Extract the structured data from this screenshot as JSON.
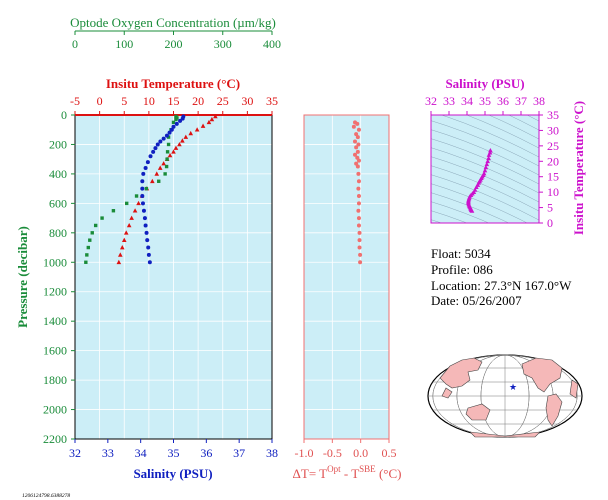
{
  "colors": {
    "oxygen": "#1a8c3a",
    "temperature": "#dd1111",
    "salinity": "#1020c0",
    "delta": "#f07070",
    "delta_axis": "#e05050",
    "ts_axis": "#cc11cc",
    "panel_bg": "#cceef7",
    "axis_black": "#000000"
  },
  "oxygen_axis": {
    "title": "Optode Oxygen Concentration (µm/kg)",
    "ticks": [
      "0",
      "100",
      "200",
      "300",
      "400"
    ]
  },
  "temperature_axis": {
    "title": "Insitu Temperature (°C)",
    "ticks": [
      "-5",
      "0",
      "5",
      "10",
      "15",
      "20",
      "25",
      "30",
      "35"
    ]
  },
  "salinity_axis": {
    "title": "Salinity (PSU)",
    "ticks": [
      "32",
      "33",
      "34",
      "35",
      "36",
      "37",
      "38"
    ]
  },
  "pressure_axis": {
    "title": "Pressure (decibar)",
    "ticks": [
      "0",
      "200",
      "400",
      "600",
      "800",
      "1000",
      "1200",
      "1400",
      "1600",
      "1800",
      "2000",
      "2200"
    ]
  },
  "delta_axis": {
    "title_prefix": "ΔT= T",
    "sup1": "Opt",
    "mid": " - T",
    "sup2": "SBE",
    "suffix": " (°C)",
    "ticks": [
      "-1.0",
      "-0.5",
      "0.0",
      "0.5"
    ]
  },
  "ts_axis": {
    "x_title": "Salinity (PSU)",
    "x_ticks": [
      "32",
      "33",
      "34",
      "35",
      "36",
      "37",
      "38"
    ],
    "y_title": "Insitu Temperature (°C)",
    "y_ticks": [
      "0",
      "5",
      "10",
      "15",
      "20",
      "25",
      "30",
      "35"
    ]
  },
  "info": {
    "float": "Float:  5034",
    "profile": "Profile:  086",
    "location": "Location:  27.3°N  167.0°W",
    "date": "Date:  05/26/2007"
  },
  "footnote": "1206124798.6388278",
  "chart_data": [
    {
      "type": "scatter",
      "subtitle": "profile",
      "ylabel": "Pressure (decibar)",
      "ylim": [
        2200,
        0
      ],
      "series": [
        {
          "key": "temperature",
          "xlim": [
            -5,
            35
          ],
          "marker": "triangle",
          "points": [
            [
              23.5,
              10
            ],
            [
              22.8,
              30
            ],
            [
              22.2,
              50
            ],
            [
              21,
              75
            ],
            [
              19.8,
              100
            ],
            [
              18.5,
              125
            ],
            [
              17.5,
              150
            ],
            [
              16.8,
              175
            ],
            [
              16.2,
              200
            ],
            [
              15.5,
              225
            ],
            [
              15,
              250
            ],
            [
              14.3,
              275
            ],
            [
              13.7,
              300
            ],
            [
              13,
              330
            ],
            [
              12.3,
              360
            ],
            [
              11.6,
              400
            ],
            [
              10.7,
              450
            ],
            [
              9.6,
              500
            ],
            [
              8.6,
              550
            ],
            [
              7.9,
              600
            ],
            [
              7.2,
              650
            ],
            [
              6.5,
              700
            ],
            [
              6,
              750
            ],
            [
              5.4,
              800
            ],
            [
              5,
              850
            ],
            [
              4.6,
              900
            ],
            [
              4.2,
              950
            ],
            [
              3.9,
              1000
            ]
          ]
        },
        {
          "key": "salinity",
          "xlim": [
            32,
            38
          ],
          "marker": "circle",
          "points": [
            [
              35.3,
              10
            ],
            [
              35.28,
              25
            ],
            [
              35.2,
              40
            ],
            [
              35.1,
              60
            ],
            [
              35,
              80
            ],
            [
              34.95,
              100
            ],
            [
              34.88,
              120
            ],
            [
              34.8,
              140
            ],
            [
              34.7,
              160
            ],
            [
              34.6,
              180
            ],
            [
              34.52,
              200
            ],
            [
              34.45,
              225
            ],
            [
              34.38,
              250
            ],
            [
              34.3,
              280
            ],
            [
              34.22,
              320
            ],
            [
              34.15,
              360
            ],
            [
              34.08,
              400
            ],
            [
              34.05,
              450
            ],
            [
              34.05,
              500
            ],
            [
              34.05,
              550
            ],
            [
              34.07,
              600
            ],
            [
              34.1,
              650
            ],
            [
              34.13,
              700
            ],
            [
              34.15,
              750
            ],
            [
              34.18,
              800
            ],
            [
              34.2,
              850
            ],
            [
              34.23,
              900
            ],
            [
              34.25,
              950
            ],
            [
              34.28,
              1000
            ]
          ]
        },
        {
          "key": "oxygen",
          "xlim": [
            0,
            400
          ],
          "marker": "square",
          "points": [
            [
              205,
              10
            ],
            [
              207,
              20
            ],
            [
              205,
              30
            ],
            [
              200,
              50
            ],
            [
              195,
              100
            ],
            [
              190,
              150
            ],
            [
              190,
              200
            ],
            [
              188,
              250
            ],
            [
              187,
              300
            ],
            [
              186,
              350
            ],
            [
              183,
              400
            ],
            [
              170,
              450
            ],
            [
              145,
              500
            ],
            [
              125,
              550
            ],
            [
              105,
              600
            ],
            [
              78,
              650
            ],
            [
              55,
              700
            ],
            [
              42,
              750
            ],
            [
              35,
              800
            ],
            [
              30,
              850
            ],
            [
              27,
              900
            ],
            [
              24,
              950
            ],
            [
              22,
              1000
            ]
          ]
        }
      ]
    },
    {
      "type": "scatter",
      "subtitle": "delta",
      "xlim": [
        -1.0,
        0.5
      ],
      "ylim": [
        2200,
        0
      ],
      "marker": "circle",
      "points": [
        [
          -0.1,
          50
        ],
        [
          -0.06,
          60
        ],
        [
          -0.12,
          80
        ],
        [
          -0.03,
          100
        ],
        [
          -0.08,
          130
        ],
        [
          -0.05,
          150
        ],
        [
          -0.1,
          180
        ],
        [
          -0.04,
          200
        ],
        [
          -0.08,
          220
        ],
        [
          -0.05,
          250
        ],
        [
          -0.1,
          270
        ],
        [
          -0.06,
          290
        ],
        [
          -0.03,
          310
        ],
        [
          -0.08,
          330
        ],
        [
          -0.05,
          350
        ],
        [
          -0.04,
          400
        ],
        [
          -0.03,
          450
        ],
        [
          -0.04,
          500
        ],
        [
          -0.03,
          550
        ],
        [
          -0.03,
          600
        ],
        [
          -0.04,
          650
        ],
        [
          -0.03,
          700
        ],
        [
          -0.03,
          750
        ],
        [
          -0.02,
          800
        ],
        [
          -0.02,
          850
        ],
        [
          -0.02,
          900
        ],
        [
          -0.01,
          950
        ],
        [
          -0.01,
          1000
        ]
      ]
    },
    {
      "type": "scatter",
      "subtitle": "TS diagram",
      "xlabel": "Salinity (PSU)",
      "ylabel": "Insitu Temperature (°C)",
      "xlim": [
        32,
        38
      ],
      "ylim": [
        0,
        35
      ],
      "marker": "triangle",
      "points": [
        [
          35.3,
          23.5
        ],
        [
          35.28,
          22.8
        ],
        [
          35.22,
          22
        ],
        [
          35.2,
          21
        ],
        [
          35.15,
          20
        ],
        [
          35.1,
          19
        ],
        [
          35.05,
          18
        ],
        [
          35,
          17
        ],
        [
          34.95,
          16
        ],
        [
          34.9,
          15.5
        ],
        [
          34.85,
          15
        ],
        [
          34.8,
          14.5
        ],
        [
          34.75,
          14
        ],
        [
          34.7,
          13.5
        ],
        [
          34.65,
          13
        ],
        [
          34.6,
          12.3
        ],
        [
          34.52,
          11.6
        ],
        [
          34.45,
          10.7
        ],
        [
          34.38,
          10
        ],
        [
          34.3,
          9.5
        ],
        [
          34.22,
          9
        ],
        [
          34.15,
          8.5
        ],
        [
          34.12,
          8
        ],
        [
          34.1,
          7.6
        ],
        [
          34.08,
          7.2
        ],
        [
          34.08,
          6.8
        ],
        [
          34.08,
          6.4
        ],
        [
          34.1,
          6
        ],
        [
          34.12,
          5.6
        ],
        [
          34.15,
          5.3
        ],
        [
          34.18,
          5
        ],
        [
          34.2,
          4.6
        ],
        [
          34.23,
          4.3
        ],
        [
          34.25,
          4.1
        ],
        [
          34.28,
          3.9
        ]
      ]
    }
  ]
}
